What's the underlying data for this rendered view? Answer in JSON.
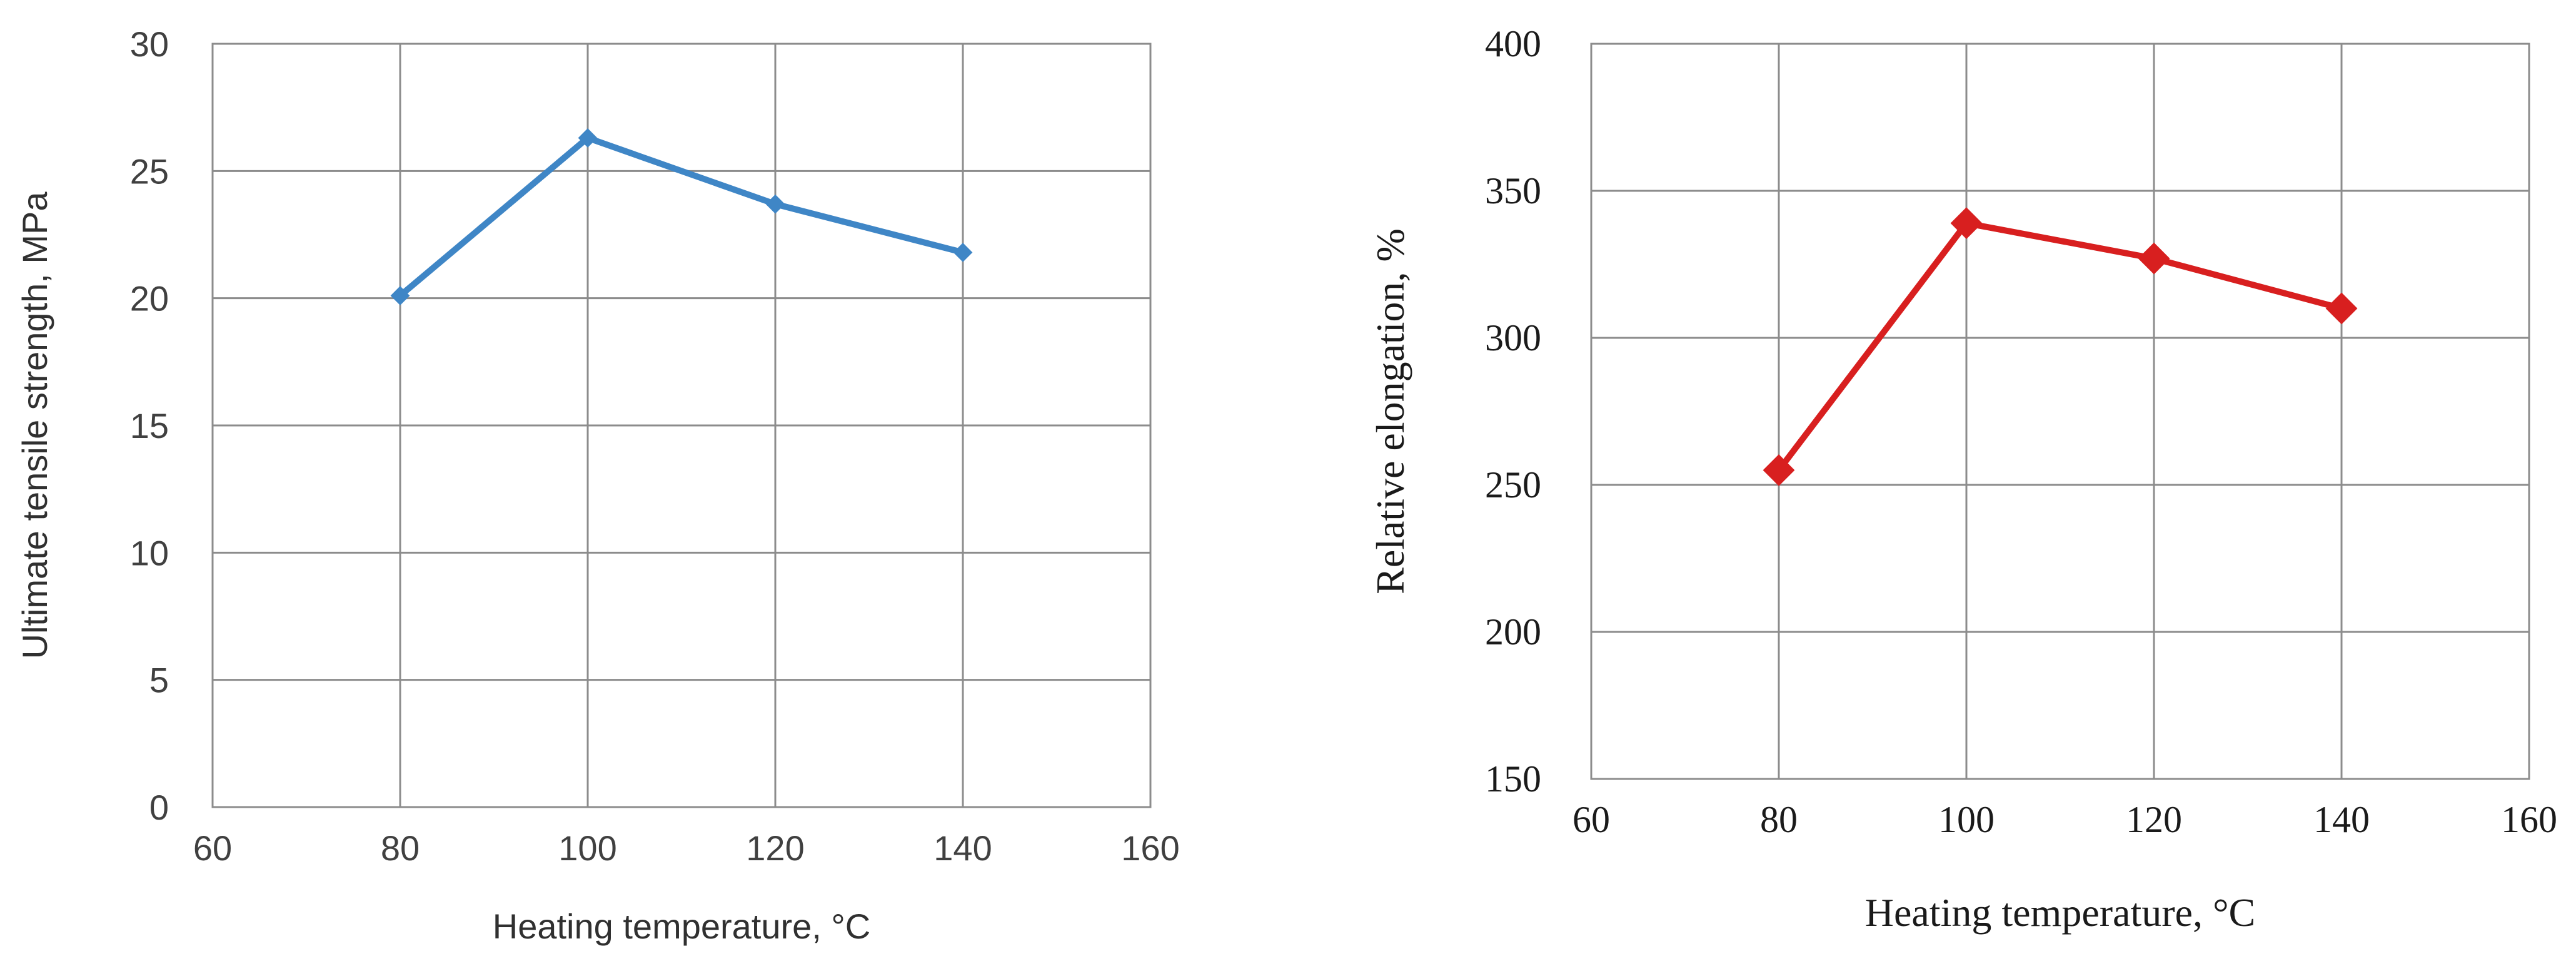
{
  "chart_data": [
    {
      "type": "line",
      "title": "",
      "xlabel": "Heating temperature, °C",
      "ylabel": "Ultimate tensile strength, MPa",
      "xlim": [
        60,
        160
      ],
      "ylim": [
        0,
        30
      ],
      "x_ticks": [
        "60",
        "80",
        "100",
        "120",
        "140",
        "160"
      ],
      "y_ticks": [
        "0",
        "5",
        "10",
        "15",
        "20",
        "25",
        "30"
      ],
      "grid": true,
      "legend": "none",
      "series": [
        {
          "x": [
            80,
            100,
            120,
            140
          ],
          "values": [
            20.1,
            26.3,
            23.7,
            21.8
          ],
          "color": "#3f86c6",
          "marker": "diamond"
        }
      ]
    },
    {
      "type": "line",
      "title": "",
      "xlabel": "Heating temperature, °C",
      "ylabel": "Relative elongation, %",
      "xlim": [
        60,
        160
      ],
      "ylim": [
        150,
        400
      ],
      "x_ticks": [
        "60",
        "80",
        "100",
        "120",
        "140",
        "160"
      ],
      "y_ticks": [
        "150",
        "200",
        "250",
        "300",
        "350",
        "400"
      ],
      "grid": true,
      "legend": "none",
      "series": [
        {
          "x": [
            80,
            100,
            120,
            140
          ],
          "values": [
            255,
            339,
            327,
            310
          ],
          "color": "#d81f1f",
          "marker": "diamond"
        }
      ]
    }
  ]
}
